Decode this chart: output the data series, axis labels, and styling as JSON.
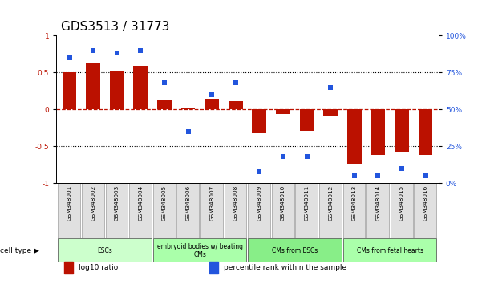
{
  "title": "GDS3513 / 31773",
  "samples": [
    "GSM348001",
    "GSM348002",
    "GSM348003",
    "GSM348004",
    "GSM348005",
    "GSM348006",
    "GSM348007",
    "GSM348008",
    "GSM348009",
    "GSM348010",
    "GSM348011",
    "GSM348012",
    "GSM348013",
    "GSM348014",
    "GSM348015",
    "GSM348016"
  ],
  "log10_ratio": [
    0.5,
    0.62,
    0.51,
    0.59,
    0.12,
    0.03,
    0.13,
    0.11,
    -0.32,
    -0.06,
    -0.29,
    -0.08,
    -0.75,
    -0.62,
    -0.58,
    -0.62
  ],
  "percentile_rank": [
    85,
    90,
    88,
    90,
    68,
    35,
    60,
    68,
    8,
    18,
    18,
    65,
    5,
    5,
    10,
    5
  ],
  "bar_color": "#bb1100",
  "dot_color": "#2255dd",
  "left_ylim": [
    -1,
    1
  ],
  "right_ylim": [
    0,
    100
  ],
  "left_yticks": [
    -1,
    -0.5,
    0,
    0.5,
    1
  ],
  "left_yticklabels": [
    "-1",
    "-0.5",
    "0",
    "0.5",
    "1"
  ],
  "right_yticks": [
    0,
    25,
    50,
    75,
    100
  ],
  "right_yticklabels": [
    "0%",
    "25%",
    "50%",
    "75%",
    "100%"
  ],
  "dotted_hlines": [
    -0.5,
    0.5
  ],
  "red_hline": 0,
  "cell_type_groups": [
    {
      "label": "ESCs",
      "start": 0,
      "end": 3,
      "color": "#ccffcc"
    },
    {
      "label": "embryoid bodies w/ beating\nCMs",
      "start": 4,
      "end": 7,
      "color": "#aaffaa"
    },
    {
      "label": "CMs from ESCs",
      "start": 8,
      "end": 11,
      "color": "#88ee88"
    },
    {
      "label": "CMs from fetal hearts",
      "start": 12,
      "end": 15,
      "color": "#aaffaa"
    }
  ],
  "legend_items": [
    {
      "label": "log10 ratio",
      "color": "#bb1100"
    },
    {
      "label": "percentile rank within the sample",
      "color": "#2255dd"
    }
  ],
  "cell_type_label": "cell type",
  "bg": "#ffffff",
  "title_fontsize": 11,
  "tick_fontsize": 6.5,
  "bar_width": 0.6
}
